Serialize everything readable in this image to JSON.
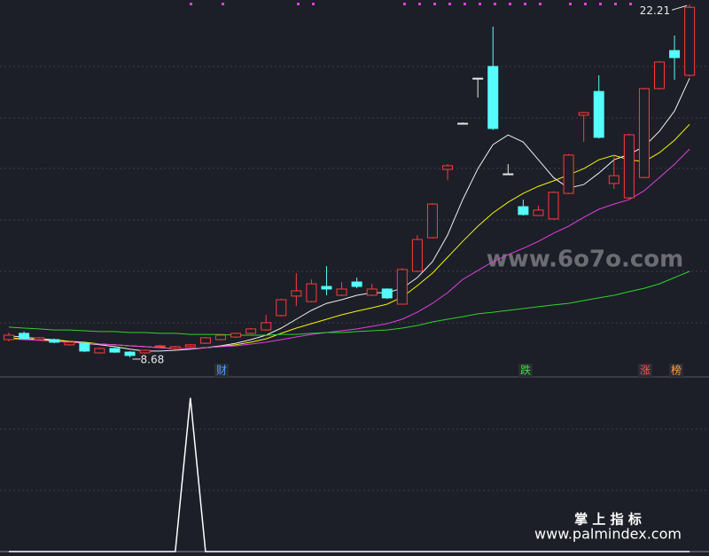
{
  "chart_data": {
    "type": "candlestick",
    "open": [
      9.36,
      9.6,
      9.36,
      9.36,
      9.16,
      9.22,
      8.85,
      9.02,
      8.88,
      8.85,
      9.09,
      9.02,
      9.09,
      9.22,
      9.36,
      9.46,
      9.6,
      9.73,
      10.28,
      11.03,
      10.82,
      11.4,
      11.06,
      11.57,
      11.06,
      11.3,
      10.72,
      11.98,
      13.27,
      15.89,
      17.66,
      19.39,
      19.84,
      15.72,
      14.46,
      14.12,
      13.99,
      14.97,
      17.97,
      18.88,
      15.35,
      14.8,
      15.58,
      18.99,
      20.45,
      19.5
    ],
    "high": [
      9.63,
      9.67,
      9.46,
      9.4,
      9.29,
      9.26,
      9.05,
      9.05,
      8.92,
      8.98,
      9.16,
      9.12,
      9.19,
      9.46,
      9.56,
      9.63,
      9.8,
      10.31,
      10.92,
      11.91,
      11.67,
      12.18,
      11.57,
      11.74,
      11.5,
      11.33,
      12.1,
      13.37,
      14.6,
      16.09,
      17.69,
      19.39,
      21.37,
      16.09,
      14.73,
      14.5,
      15.05,
      16.48,
      18.1,
      19.5,
      16.44,
      17.25,
      19.02,
      20.05,
      21.03,
      22.21
    ],
    "low": [
      9.29,
      9.36,
      9.33,
      9.22,
      9.12,
      8.88,
      8.82,
      8.85,
      8.68,
      8.82,
      9.05,
      8.98,
      9.05,
      9.19,
      9.33,
      9.43,
      9.56,
      9.7,
      10.25,
      10.65,
      10.79,
      11.06,
      11.03,
      11.33,
      11.03,
      10.92,
      10.7,
      11.95,
      13.24,
      15.48,
      17.63,
      18.65,
      17.4,
      15.72,
      14.12,
      14.1,
      13.96,
      14.94,
      16.95,
      17.08,
      15.14,
      14.77,
      15.55,
      18.95,
      19.33,
      19.45
    ],
    "close": [
      9.53,
      9.39,
      9.43,
      9.26,
      9.26,
      8.92,
      9.02,
      8.88,
      8.75,
      8.95,
      9.12,
      9.09,
      9.16,
      9.43,
      9.53,
      9.6,
      9.77,
      10.01,
      10.89,
      11.23,
      11.5,
      11.3,
      11.3,
      11.4,
      11.3,
      10.96,
      12.05,
      13.2,
      14.56,
      16.03,
      17.66,
      19.39,
      17.46,
      15.72,
      14.16,
      14.33,
      15.01,
      16.44,
      18.07,
      17.12,
      15.65,
      17.22,
      18.99,
      20.01,
      20.18,
      22.11
    ],
    "up_color": "#ff3b3b",
    "down_color": "#54fcfc",
    "flat_color": "#e8e8e8",
    "lines": [
      {
        "color": "#f0f0f0",
        "values": [
          9.5,
          9.46,
          9.39,
          9.36,
          9.29,
          9.22,
          9.16,
          9.09,
          8.99,
          8.92,
          8.92,
          8.95,
          8.99,
          9.05,
          9.12,
          9.22,
          9.36,
          9.53,
          9.8,
          10.14,
          10.48,
          10.75,
          10.89,
          11.06,
          11.16,
          11.16,
          11.33,
          11.74,
          12.35,
          13.37,
          14.73,
          15.92,
          16.84,
          17.21,
          16.94,
          16.26,
          15.58,
          15.17,
          15.31,
          15.75,
          16.26,
          16.47,
          16.77,
          17.35,
          18.13,
          19.39
        ]
      },
      {
        "color": "#f5f500",
        "values": [
          9.43,
          9.39,
          9.36,
          9.33,
          9.29,
          9.26,
          9.19,
          9.16,
          9.12,
          9.09,
          9.05,
          9.02,
          9.02,
          9.05,
          9.09,
          9.16,
          9.26,
          9.39,
          9.6,
          9.8,
          9.97,
          10.14,
          10.31,
          10.45,
          10.58,
          10.72,
          10.99,
          11.43,
          11.91,
          12.52,
          13.13,
          13.71,
          14.22,
          14.63,
          14.97,
          15.24,
          15.45,
          15.68,
          15.92,
          16.26,
          16.43,
          16.26,
          16.19,
          16.53,
          17.01,
          17.62
        ]
      },
      {
        "color": "#e040e0",
        "values": [
          9.39,
          9.36,
          9.33,
          9.29,
          9.26,
          9.22,
          9.19,
          9.16,
          9.12,
          9.09,
          9.05,
          9.02,
          9.02,
          9.05,
          9.09,
          9.12,
          9.19,
          9.26,
          9.36,
          9.46,
          9.56,
          9.63,
          9.7,
          9.77,
          9.87,
          9.97,
          10.14,
          10.41,
          10.75,
          11.16,
          11.67,
          12.01,
          12.35,
          12.62,
          12.86,
          13.13,
          13.44,
          13.71,
          14.05,
          14.36,
          14.56,
          14.73,
          15.07,
          15.58,
          16.09,
          16.67
        ]
      },
      {
        "color": "#30d030",
        "values": [
          9.84,
          9.8,
          9.77,
          9.73,
          9.73,
          9.7,
          9.67,
          9.67,
          9.63,
          9.63,
          9.6,
          9.6,
          9.56,
          9.56,
          9.56,
          9.53,
          9.53,
          9.53,
          9.56,
          9.56,
          9.6,
          9.63,
          9.63,
          9.67,
          9.7,
          9.73,
          9.8,
          9.9,
          10.04,
          10.14,
          10.24,
          10.35,
          10.41,
          10.48,
          10.55,
          10.62,
          10.69,
          10.75,
          10.86,
          10.96,
          11.06,
          11.2,
          11.33,
          11.5,
          11.74,
          11.98
        ]
      }
    ],
    "ylim": [
      8.1,
      22.39
    ],
    "high_label": 22.21,
    "low_label": 8.68,
    "signals": [
      {
        "text": "财",
        "color": "#4ca0ff"
      },
      {
        "text": "跌",
        "color": "#3ddc3d"
      },
      {
        "text": "涨",
        "color": "#ff5050"
      },
      {
        "text": "榜",
        "color": "#ffa040"
      }
    ],
    "indicator": {
      "color": "#ffffff",
      "ylim": [
        0,
        1.05
      ],
      "values": [
        0,
        0,
        0,
        0,
        0,
        0,
        0,
        0,
        0,
        0,
        0,
        0,
        1,
        0,
        0,
        0,
        0,
        0,
        0,
        0,
        0,
        0,
        0,
        0,
        0,
        0,
        0,
        0,
        0,
        0,
        0,
        0,
        0,
        0,
        0,
        0,
        0,
        0,
        0,
        0,
        0,
        0,
        0,
        0,
        0,
        0
      ]
    }
  },
  "watermark": {
    "middle": "www.6o7o.com",
    "brand": "掌 上 指 标",
    "site": "www.palmindex.com"
  }
}
